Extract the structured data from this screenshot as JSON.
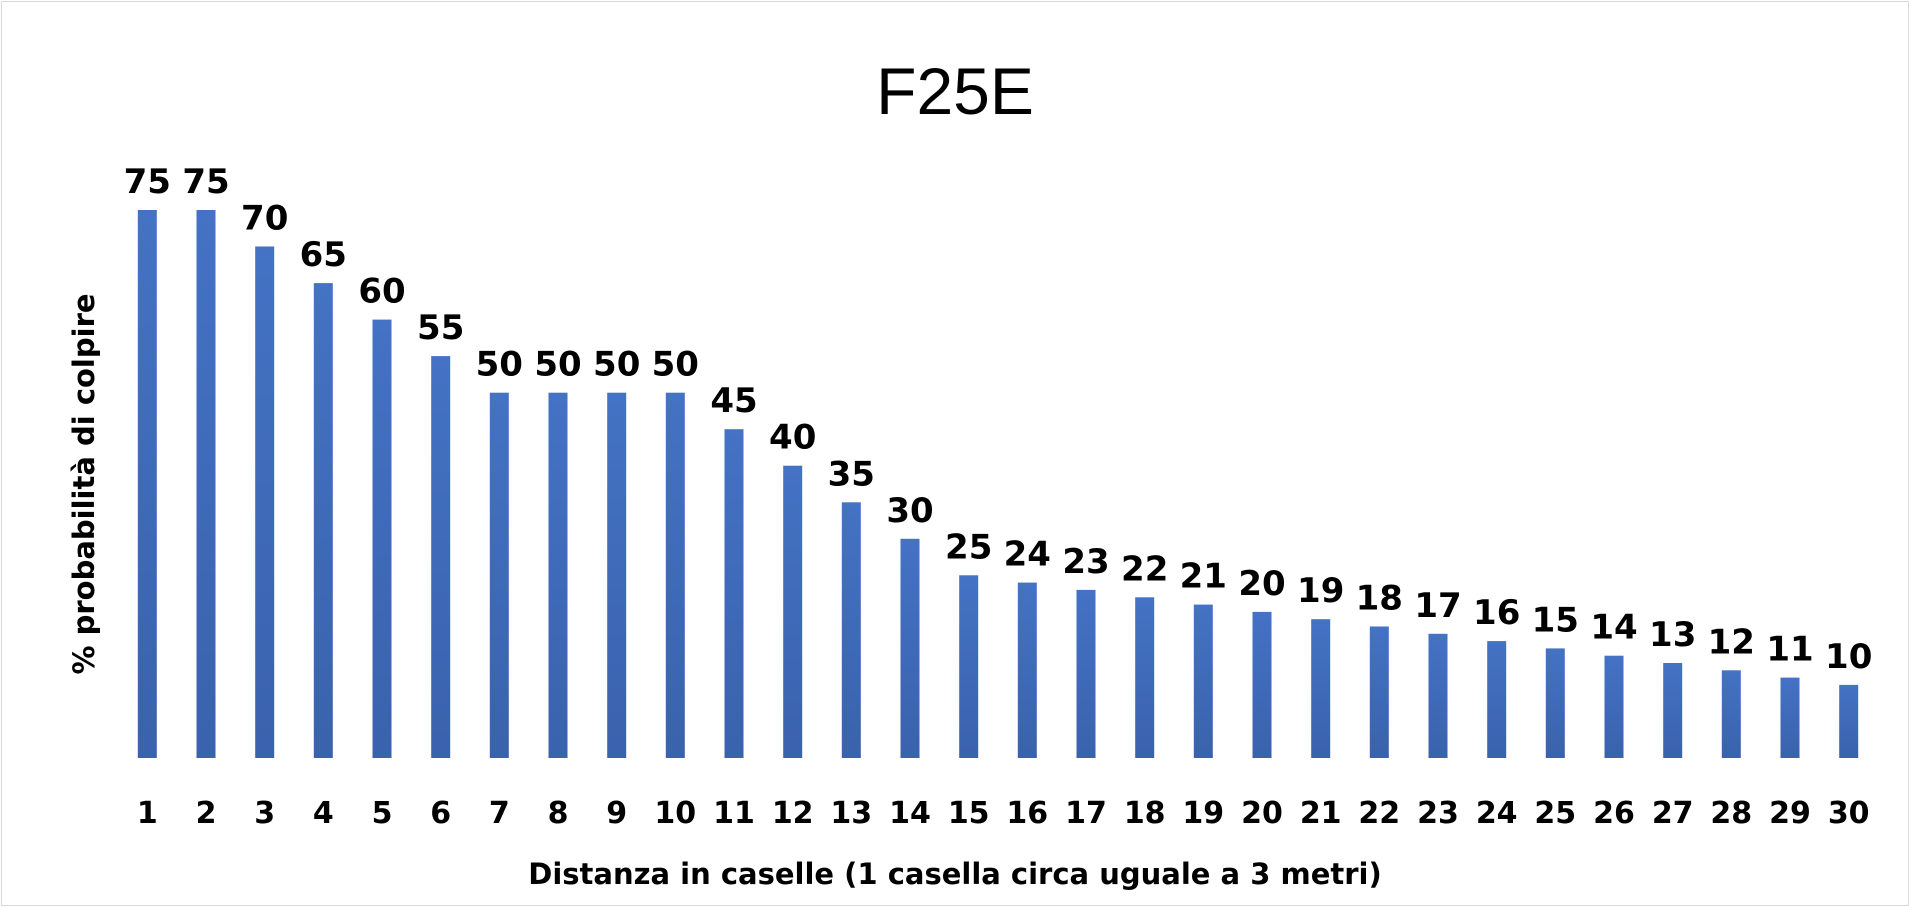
{
  "chart_data": {
    "type": "bar",
    "title": "F25E",
    "xlabel": "Distanza in caselle (1 casella circa uguale a 3 metri)",
    "ylabel": "% probabilità di colpire",
    "categories": [
      "1",
      "2",
      "3",
      "4",
      "5",
      "6",
      "7",
      "8",
      "9",
      "10",
      "11",
      "12",
      "13",
      "14",
      "15",
      "16",
      "17",
      "18",
      "19",
      "20",
      "21",
      "22",
      "23",
      "24",
      "25",
      "26",
      "27",
      "28",
      "29",
      "30"
    ],
    "values": [
      75,
      75,
      70,
      65,
      60,
      55,
      50,
      50,
      50,
      50,
      45,
      40,
      35,
      30,
      25,
      24,
      23,
      22,
      21,
      20,
      19,
      18,
      17,
      16,
      15,
      14,
      13,
      12,
      11,
      10
    ],
    "ylim": [
      0,
      75
    ],
    "grid": false,
    "legend": "none",
    "bar_color": "#4472c4",
    "bar_color_dark": "#3a62ad"
  }
}
